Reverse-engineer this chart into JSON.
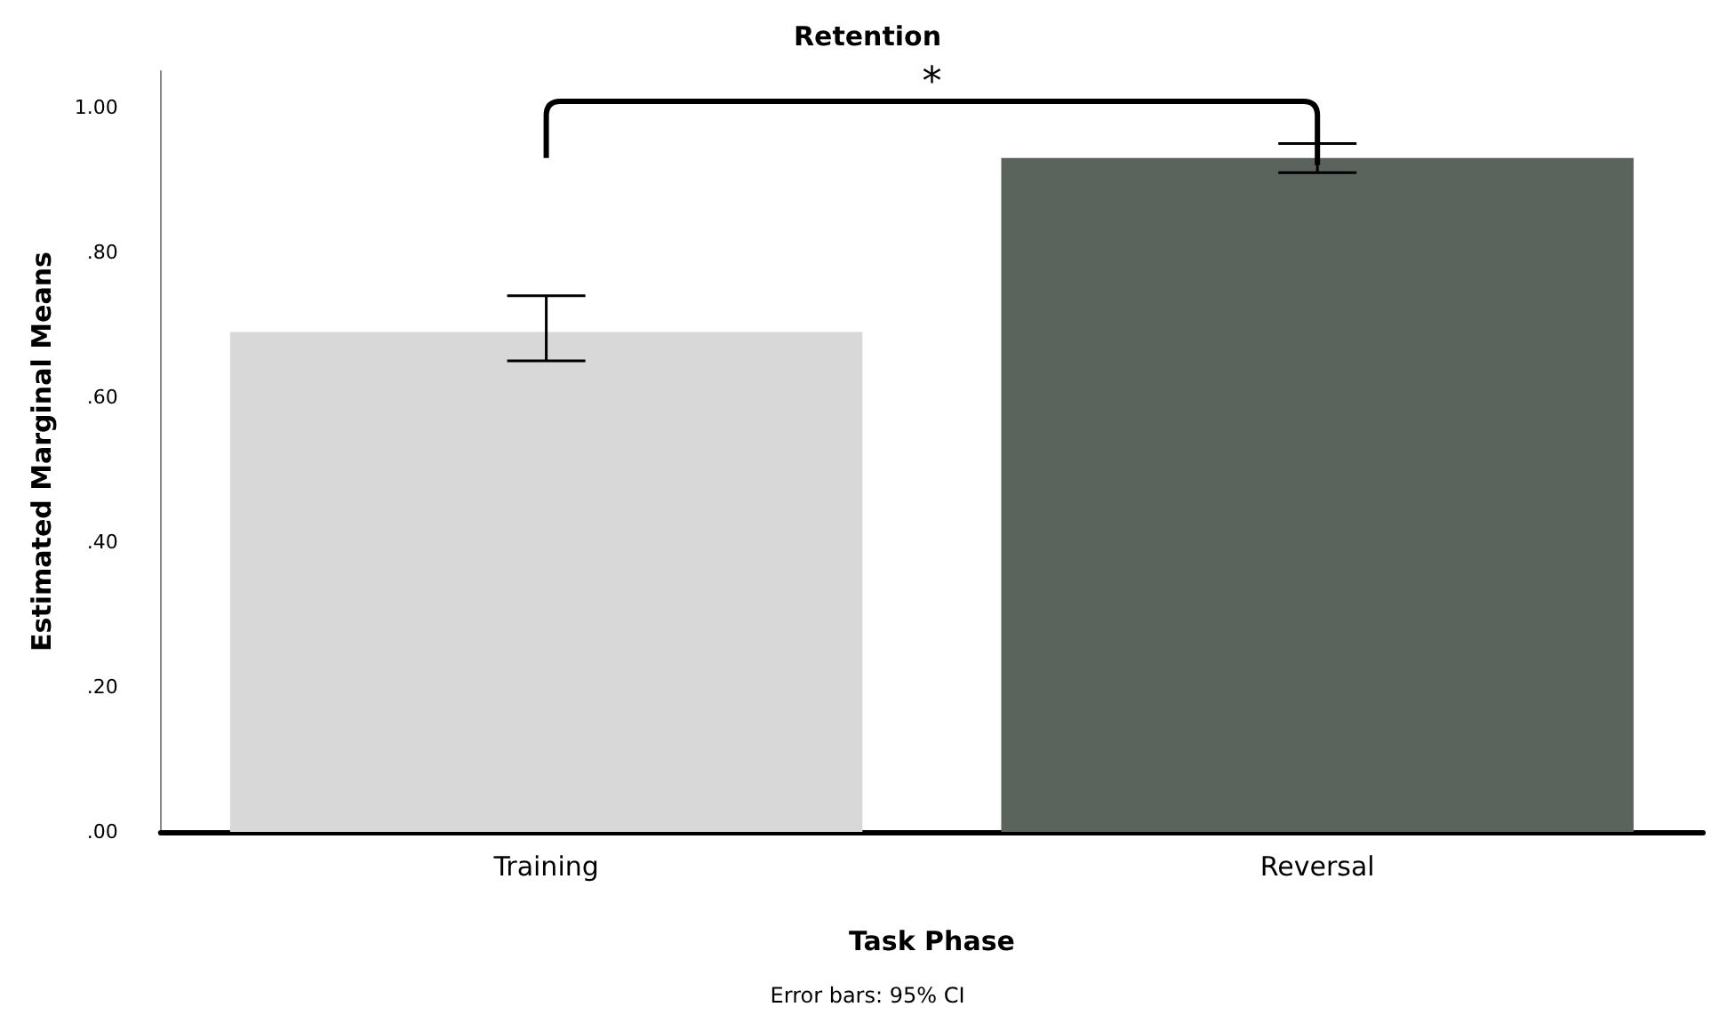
{
  "chart_data": {
    "type": "bar",
    "title": "Retention",
    "xlabel": "Task Phase",
    "ylabel": "Estimated Marginal Means",
    "categories": [
      "Training",
      "Reversal"
    ],
    "values": [
      0.69,
      0.93
    ],
    "colors": [
      "#d8d8d8",
      "#5b635d"
    ],
    "errors": [
      [
        0.65,
        0.74
      ],
      [
        0.91,
        0.95
      ]
    ],
    "ylim": [
      0,
      1.05
    ],
    "yticks": [
      {
        "value": 0,
        "label": ".00"
      },
      {
        "value": 0.2,
        "label": ".20"
      },
      {
        "value": 0.4,
        "label": ".40"
      },
      {
        "value": 0.6,
        "label": ".60"
      },
      {
        "value": 0.8,
        "label": ".80"
      },
      {
        "value": 1,
        "label": "1.00"
      }
    ],
    "grid": false,
    "annotations": [
      "*",
      "Error bars: 95% CI"
    ]
  }
}
